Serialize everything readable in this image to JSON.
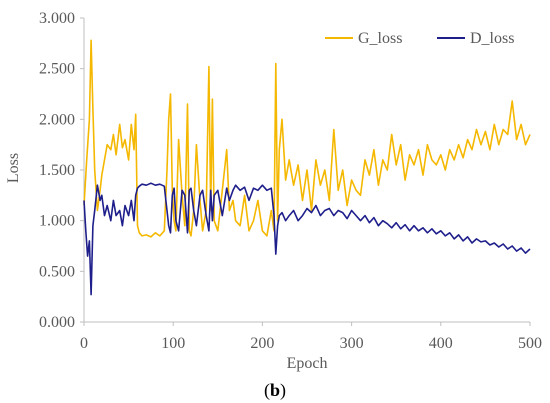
{
  "caption": {
    "open": "(",
    "letter": "b",
    "close": ")"
  },
  "colors": {
    "g_loss": "#F5B800",
    "d_loss": "#1F1F8C",
    "axis": "#BFBFBF",
    "text": "#595959"
  },
  "chart_data": {
    "type": "line",
    "title": "",
    "xlabel": "Epoch",
    "ylabel": "Loss",
    "xlim": [
      0,
      500
    ],
    "ylim": [
      0,
      3
    ],
    "x_ticks": [
      0,
      100,
      200,
      300,
      400,
      500
    ],
    "x_tick_labels": [
      "0",
      "100",
      "200",
      "300",
      "400",
      "500"
    ],
    "y_ticks": [
      0,
      0.5,
      1.0,
      1.5,
      2.0,
      2.5,
      3.0
    ],
    "y_tick_labels": [
      "0.000",
      "0.500",
      "1.000",
      "1.500",
      "2.000",
      "2.500",
      "3.000"
    ],
    "grid": false,
    "legend_position": "top-right",
    "series": [
      {
        "name": "G_loss",
        "color": "#F5B800",
        "x": [
          0,
          3,
          6,
          8,
          10,
          12,
          15,
          18,
          20,
          23,
          26,
          30,
          33,
          36,
          40,
          43,
          46,
          50,
          53,
          56,
          58,
          60,
          62,
          65,
          70,
          75,
          80,
          85,
          90,
          93,
          95,
          97,
          99,
          101,
          103,
          106,
          110,
          113,
          116,
          118,
          120,
          123,
          126,
          130,
          133,
          137,
          140,
          142,
          144,
          146,
          150,
          155,
          160,
          163,
          167,
          170,
          175,
          180,
          185,
          190,
          195,
          200,
          205,
          210,
          213,
          215,
          217,
          219,
          222,
          226,
          230,
          235,
          240,
          245,
          250,
          255,
          260,
          265,
          270,
          275,
          280,
          285,
          290,
          295,
          300,
          305,
          310,
          315,
          320,
          325,
          330,
          335,
          340,
          345,
          350,
          355,
          360,
          365,
          370,
          375,
          380,
          385,
          390,
          395,
          400,
          405,
          410,
          415,
          420,
          425,
          430,
          435,
          440,
          445,
          450,
          455,
          460,
          465,
          470,
          475,
          480,
          485,
          490,
          495,
          500
        ],
        "values": [
          1.15,
          1.6,
          2.0,
          2.78,
          2.1,
          1.5,
          1.1,
          1.3,
          1.45,
          1.6,
          1.75,
          1.7,
          1.85,
          1.65,
          1.95,
          1.72,
          1.8,
          1.6,
          1.95,
          1.7,
          2.05,
          0.95,
          0.88,
          0.85,
          0.86,
          0.84,
          0.88,
          0.85,
          0.9,
          1.5,
          2.0,
          2.25,
          1.3,
          1.0,
          0.9,
          1.8,
          1.25,
          0.95,
          2.15,
          0.9,
          0.85,
          1.1,
          1.75,
          1.2,
          0.9,
          1.1,
          2.52,
          1.1,
          2.2,
          1.0,
          0.9,
          1.3,
          1.7,
          1.1,
          1.2,
          1.0,
          0.95,
          1.25,
          0.9,
          1.0,
          1.2,
          0.9,
          0.85,
          1.1,
          0.9,
          2.55,
          1.0,
          1.7,
          2.0,
          1.4,
          1.6,
          1.35,
          1.55,
          1.2,
          1.5,
          1.1,
          1.6,
          1.35,
          1.5,
          1.2,
          1.9,
          1.3,
          1.5,
          1.15,
          1.4,
          1.3,
          1.25,
          1.6,
          1.45,
          1.7,
          1.35,
          1.6,
          1.5,
          1.85,
          1.55,
          1.75,
          1.4,
          1.65,
          1.55,
          1.7,
          1.45,
          1.75,
          1.6,
          1.55,
          1.65,
          1.5,
          1.7,
          1.6,
          1.75,
          1.62,
          1.8,
          1.7,
          1.9,
          1.75,
          1.88,
          1.7,
          1.95,
          1.75,
          1.9,
          1.85,
          2.18,
          1.8,
          1.95,
          1.75,
          1.85
        ]
      },
      {
        "name": "D_loss",
        "color": "#1F1F8C",
        "x": [
          0,
          2,
          4,
          6,
          8,
          10,
          12,
          15,
          18,
          20,
          23,
          26,
          30,
          33,
          36,
          40,
          43,
          46,
          50,
          53,
          56,
          58,
          60,
          62,
          65,
          70,
          75,
          80,
          85,
          90,
          93,
          95,
          97,
          99,
          101,
          103,
          106,
          110,
          113,
          116,
          118,
          120,
          123,
          126,
          130,
          133,
          137,
          140,
          142,
          144,
          146,
          150,
          155,
          160,
          163,
          167,
          170,
          175,
          180,
          185,
          190,
          195,
          200,
          205,
          210,
          213,
          215,
          217,
          219,
          222,
          226,
          230,
          235,
          240,
          245,
          250,
          255,
          260,
          265,
          270,
          275,
          280,
          285,
          290,
          295,
          300,
          305,
          310,
          315,
          320,
          325,
          330,
          335,
          340,
          345,
          350,
          355,
          360,
          365,
          370,
          375,
          380,
          385,
          390,
          395,
          400,
          405,
          410,
          415,
          420,
          425,
          430,
          435,
          440,
          445,
          450,
          455,
          460,
          465,
          470,
          475,
          480,
          485,
          490,
          495,
          500
        ],
        "values": [
          1.2,
          0.9,
          0.65,
          0.8,
          0.27,
          0.95,
          1.1,
          1.35,
          1.2,
          1.25,
          1.05,
          1.15,
          1.0,
          1.2,
          1.05,
          1.1,
          0.95,
          1.15,
          1.05,
          1.2,
          1.0,
          1.25,
          1.32,
          1.34,
          1.36,
          1.35,
          1.37,
          1.35,
          1.36,
          1.34,
          1.1,
          0.95,
          0.88,
          1.25,
          1.32,
          1.0,
          0.9,
          1.3,
          1.25,
          0.88,
          1.3,
          1.32,
          1.1,
          0.95,
          1.25,
          1.3,
          1.05,
          0.9,
          1.3,
          1.0,
          1.25,
          1.3,
          1.05,
          1.32,
          1.2,
          1.3,
          1.35,
          1.3,
          1.33,
          1.2,
          1.32,
          1.3,
          1.35,
          1.3,
          1.32,
          1.05,
          0.67,
          0.95,
          1.05,
          1.08,
          1.0,
          1.05,
          1.1,
          1.0,
          1.05,
          1.12,
          1.08,
          1.15,
          1.05,
          1.1,
          1.12,
          1.05,
          1.1,
          1.08,
          1.02,
          1.1,
          1.05,
          1.0,
          1.05,
          0.98,
          1.03,
          0.95,
          1.0,
          0.97,
          0.93,
          0.98,
          0.92,
          0.96,
          0.9,
          0.95,
          0.9,
          0.93,
          0.88,
          0.92,
          0.87,
          0.9,
          0.85,
          0.88,
          0.82,
          0.86,
          0.8,
          0.84,
          0.78,
          0.82,
          0.79,
          0.8,
          0.76,
          0.78,
          0.74,
          0.77,
          0.72,
          0.75,
          0.7,
          0.73,
          0.68,
          0.72
        ]
      }
    ]
  }
}
